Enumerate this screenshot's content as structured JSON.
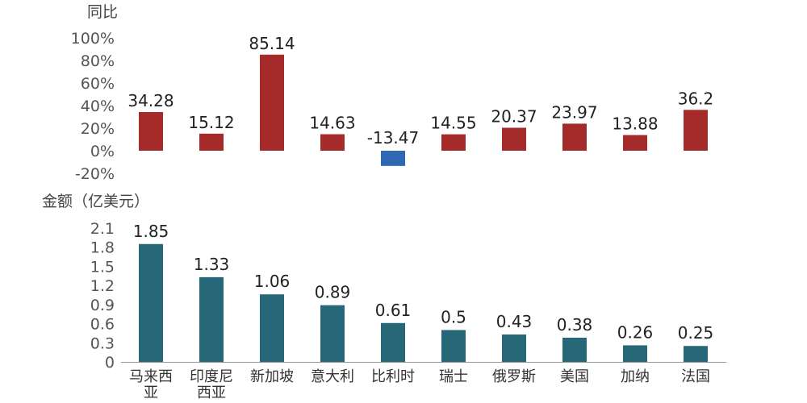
{
  "chart_data": [
    {
      "type": "bar",
      "ylabel": "同比",
      "categories": [
        "马来西亚",
        "印度尼西亚",
        "新加坡",
        "意大利",
        "比利时",
        "瑞士",
        "俄罗斯",
        "美国",
        "加纳",
        "法国"
      ],
      "values": [
        34.28,
        15.12,
        85.14,
        14.63,
        -13.47,
        14.55,
        20.37,
        23.97,
        13.88,
        36.2
      ],
      "value_labels": [
        "34.28",
        "15.12",
        "85.14",
        "14.63",
        "-13.47",
        "14.55",
        "20.37",
        "23.97",
        "13.88",
        "36.2"
      ],
      "yticks": [
        "100%",
        "80%",
        "60%",
        "40%",
        "20%",
        "0%",
        "-20%"
      ],
      "ytick_values": [
        100,
        80,
        60,
        40,
        20,
        0,
        -20
      ],
      "ylim": [
        -20,
        100
      ],
      "grid": false,
      "colors": {
        "positive": "#A52A2A",
        "negative": "#2F69B3"
      }
    },
    {
      "type": "bar",
      "ylabel": "金额（亿美元）",
      "categories": [
        "马来西亚",
        "印度尼西亚",
        "新加坡",
        "意大利",
        "比利时",
        "瑞士",
        "俄罗斯",
        "美国",
        "加纳",
        "法国"
      ],
      "category_labels": [
        [
          "马来西",
          "亚"
        ],
        [
          "印度尼",
          "西亚"
        ],
        [
          "新加坡"
        ],
        [
          "意大利"
        ],
        [
          "比利时"
        ],
        [
          "瑞士"
        ],
        [
          "俄罗斯"
        ],
        [
          "美国"
        ],
        [
          "加纳"
        ],
        [
          "法国"
        ]
      ],
      "values": [
        1.85,
        1.33,
        1.06,
        0.89,
        0.61,
        0.5,
        0.43,
        0.38,
        0.26,
        0.25
      ],
      "value_labels": [
        "1.85",
        "1.33",
        "1.06",
        "0.89",
        "0.61",
        "0.5",
        "0.43",
        "0.38",
        "0.26",
        "0.25"
      ],
      "yticks": [
        "2.1",
        "1.8",
        "1.5",
        "1.2",
        "0.9",
        "0.6",
        "0.3",
        "0"
      ],
      "ytick_values": [
        2.1,
        1.8,
        1.5,
        1.2,
        0.9,
        0.6,
        0.3,
        0
      ],
      "ylim": [
        0,
        2.1
      ],
      "grid": false,
      "colors": {
        "bar": "#276878",
        "axis": "#999999"
      }
    }
  ]
}
